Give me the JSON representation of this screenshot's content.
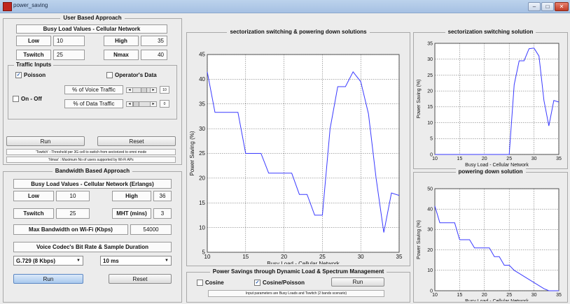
{
  "window": {
    "title": "power_saving",
    "btn_min": "–",
    "btn_max": "□",
    "btn_close": "✕"
  },
  "user_panel": {
    "title": "User Based Approach",
    "subtitle": "Busy Load Values - Cellular Network",
    "low_label": "Low",
    "low_value": "10",
    "high_label": "High",
    "high_value": "35",
    "tswitch_label": "Tswitch",
    "tswitch_value": "25",
    "nmax_label": "Nmax",
    "nmax_value": "40",
    "traffic": {
      "title": "Traffic Inputs",
      "poisson_label": "Poisson",
      "poisson_checked": "✓",
      "operator_label": "Operator's Data",
      "onoff_label": "On - Off",
      "voice_label": "% of Voice Traffic",
      "voice_value": "10",
      "data_label": "% of Data Traffic",
      "data_value": "0"
    },
    "run_label": "Run",
    "reset_label": "Reset",
    "note1": "'Tswitch' : Threshold per 3G cell to switch from sectorized to omni mode",
    "note2": "'Nmax' : Maximum No of users supported by Wi-Fi APs"
  },
  "bandwidth_panel": {
    "title": "Bandwidth Based Approach",
    "subtitle": "Busy Load Values - Cellular Network (Erlangs)",
    "low_label": "Low",
    "low_value": "10",
    "high_label": "High",
    "high_value": "36",
    "tswitch_label": "Tswitch",
    "tswitch_value": "25",
    "mht_label": "MHT (mins)",
    "mht_value": "3",
    "maxbw_label": "Max Bandwidth on Wi-Fi (Kbps)",
    "maxbw_value": "54000",
    "codec_label": "Voice Codec's Bit Rate & Sample Duration",
    "codec_value": "G.729   (8 Kbps)",
    "duration_value": "10 ms",
    "run_label": "Run",
    "reset_label": "Reset"
  },
  "dyn_panel": {
    "title": "Power Savings through Dynamic Load & Spectrum Management",
    "cosine_label": "Cosine",
    "cosine_poisson_label": "Cosine/Poisson",
    "cosine_poisson_checked": "✓",
    "run_label": "Run",
    "note": "Input parameters are Busy Loads and Tswitch (2 bands scenario)"
  },
  "chart_data": [
    {
      "type": "line",
      "title": "sectorization switching & powering down solutions",
      "xlabel": "Busy Load - Cellular Network",
      "ylabel": "Power Saving (%)",
      "xlim": [
        10,
        35
      ],
      "ylim": [
        5,
        45
      ],
      "xticks": [
        10,
        15,
        20,
        25,
        30,
        35
      ],
      "yticks": [
        5,
        10,
        15,
        20,
        25,
        30,
        35,
        40,
        45
      ],
      "grid": true,
      "x": [
        10,
        11,
        12,
        13,
        14,
        15,
        16,
        17,
        18,
        19,
        20,
        21,
        22,
        23,
        24,
        25,
        26,
        27,
        28,
        29,
        30,
        31,
        32,
        33,
        34,
        35
      ],
      "values": [
        41.5,
        33.3,
        33.3,
        33.3,
        33.3,
        25,
        25,
        25,
        21,
        21,
        21,
        21,
        16.7,
        16.7,
        12.5,
        12.5,
        30,
        38.5,
        38.5,
        41.5,
        39.5,
        33,
        20,
        9,
        17,
        16.5
      ]
    },
    {
      "type": "line",
      "title": "sectorization switching solution",
      "xlabel": "Busy Load - Cellular Network",
      "ylabel": "Power Saving (%)",
      "xlim": [
        10,
        35
      ],
      "ylim": [
        0,
        35
      ],
      "xticks": [
        10,
        15,
        20,
        25,
        30,
        35
      ],
      "yticks": [
        0,
        5,
        10,
        15,
        20,
        25,
        30,
        35
      ],
      "grid": true,
      "x": [
        10,
        11,
        12,
        13,
        14,
        15,
        16,
        17,
        18,
        19,
        20,
        21,
        22,
        23,
        24,
        25,
        26,
        27,
        28,
        29,
        30,
        31,
        32,
        33,
        34,
        35
      ],
      "values": [
        0,
        0,
        0,
        0,
        0,
        0,
        0,
        0,
        0,
        0,
        0,
        0,
        0,
        0,
        0,
        0,
        22,
        29.5,
        29.5,
        33.3,
        33.5,
        31,
        17,
        9,
        17,
        16.5
      ]
    },
    {
      "type": "line",
      "title": "powering down solution",
      "xlabel": "Busy Load - Cellular Network",
      "ylabel": "Power Saving (%)",
      "xlim": [
        10,
        35
      ],
      "ylim": [
        0,
        50
      ],
      "xticks": [
        10,
        15,
        20,
        25,
        30,
        35
      ],
      "yticks": [
        0,
        10,
        20,
        30,
        40,
        50
      ],
      "grid": true,
      "x": [
        10,
        11,
        12,
        13,
        14,
        15,
        16,
        17,
        18,
        19,
        20,
        21,
        22,
        23,
        24,
        25,
        26,
        27,
        28,
        29,
        30,
        31,
        32,
        33,
        34,
        35
      ],
      "values": [
        41.5,
        33.3,
        33.3,
        33.3,
        33.3,
        25,
        25,
        25,
        21,
        21,
        21,
        21,
        16.7,
        16.7,
        12.5,
        12.5,
        10,
        8.5,
        7,
        5.5,
        4,
        2.5,
        1,
        0,
        0,
        0
      ]
    }
  ]
}
